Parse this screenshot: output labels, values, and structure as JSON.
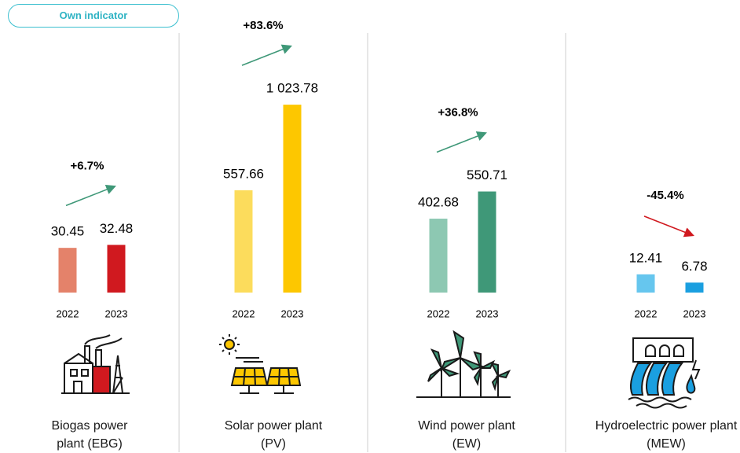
{
  "header": {
    "badge": "Own indicator"
  },
  "chart_data": [
    {
      "type": "bar",
      "title": "Biogas power plant (EBG)",
      "annotation": "+6.7%",
      "categories": [
        "2022",
        "2023"
      ],
      "values": [
        30.45,
        32.48
      ],
      "colors": [
        "#e4826a",
        "#d0191f"
      ],
      "ylim": [
        0,
        150
      ]
    },
    {
      "type": "bar",
      "title": "Solar power plant (PV)",
      "annotation": "+83.6%",
      "categories": [
        "2022",
        "2023"
      ],
      "values": [
        557.66,
        1023.78
      ],
      "value_labels": [
        "557.66",
        "1 023.78"
      ],
      "colors": [
        "#fcdc5c",
        "#fdc700"
      ],
      "ylim": [
        0,
        1200
      ]
    },
    {
      "type": "bar",
      "title": "Wind power plant (EW)",
      "annotation": "+36.8%",
      "categories": [
        "2022",
        "2023"
      ],
      "values": [
        402.68,
        550.71
      ],
      "colors": [
        "#8dc8b2",
        "#3f9878"
      ],
      "ylim": [
        0,
        1200
      ]
    },
    {
      "type": "bar",
      "title": "Hydroelectric power plant (MEW)",
      "annotation": "-45.4%",
      "categories": [
        "2022",
        "2023"
      ],
      "values": [
        12.41,
        6.78
      ],
      "colors": [
        "#66c6ee",
        "#1a9fe0"
      ],
      "ylim": [
        0,
        150
      ]
    }
  ]
}
